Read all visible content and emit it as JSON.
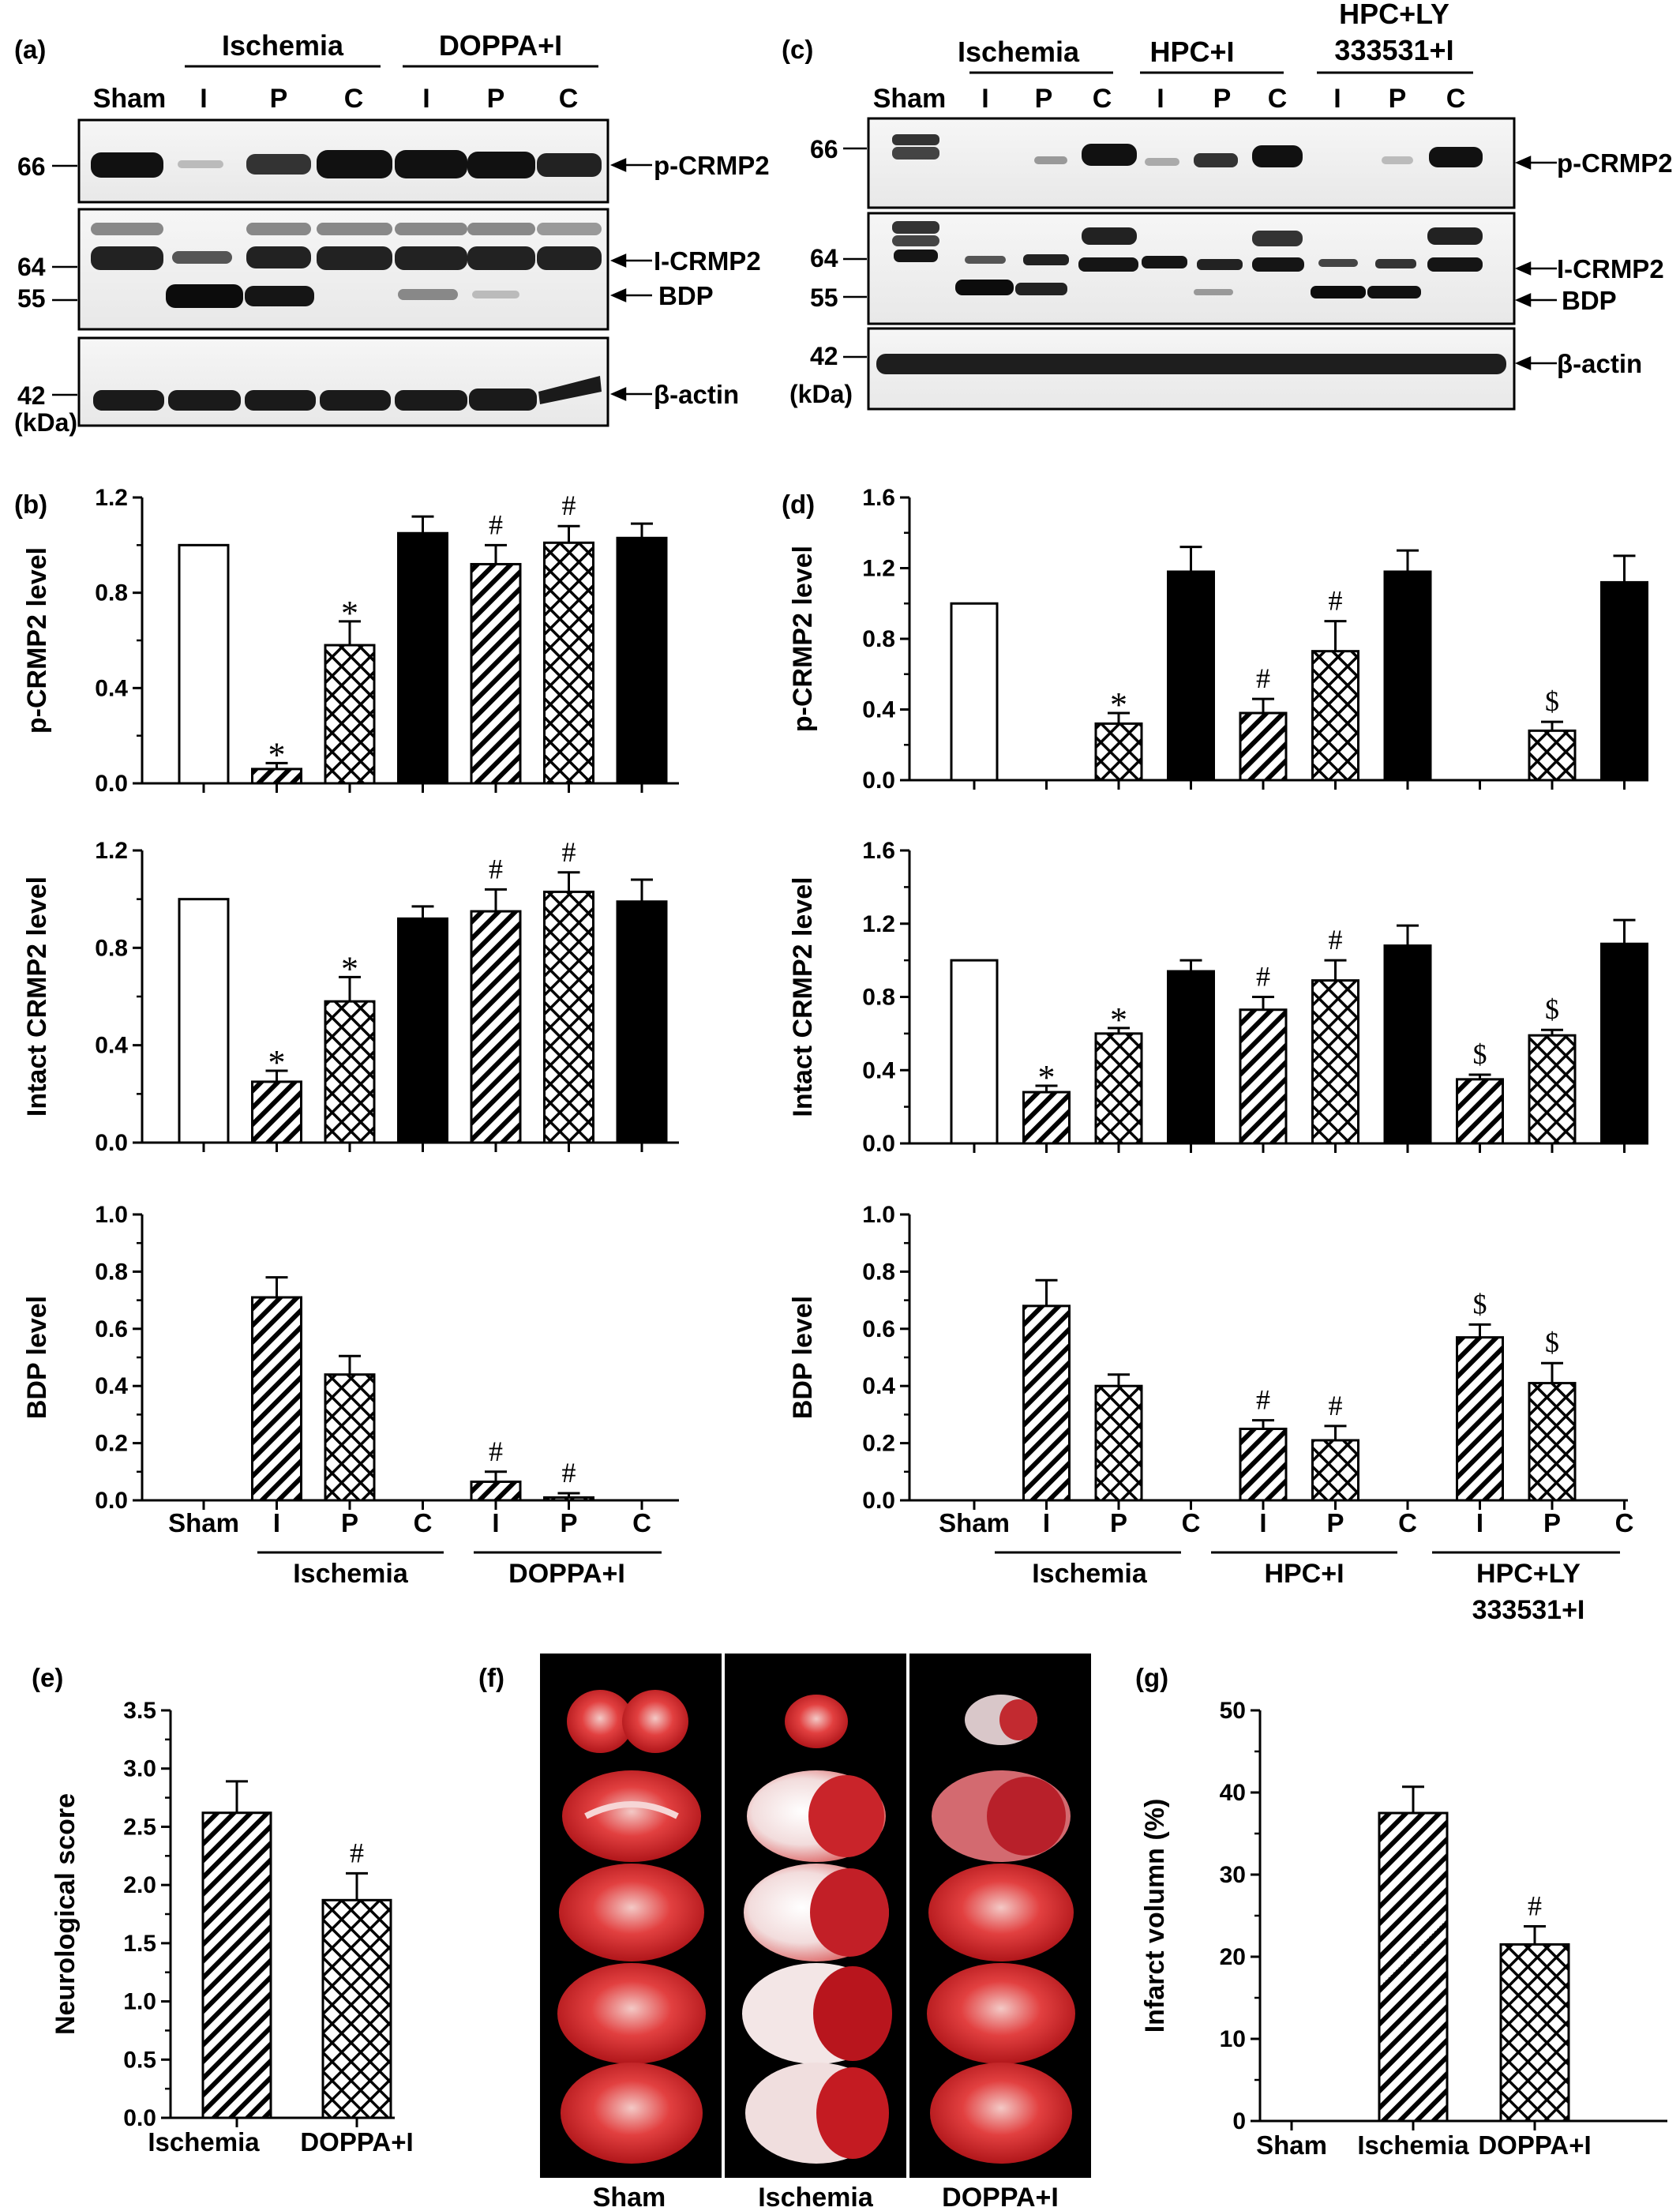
{
  "panel_letters": {
    "a": "(a)",
    "b": "(b)",
    "c": "(c)",
    "d": "(d)",
    "e": "(e)",
    "f": "(f)",
    "g": "(g)"
  },
  "lanes": {
    "sham": "Sham",
    "i": "I",
    "p": "P",
    "c": "C"
  },
  "groups": {
    "ischemia": "Ischemia",
    "doppa": "DOPPA+I",
    "hpc": "HPC+I",
    "hpcly_line1": "HPC+LY",
    "hpcly_line2": "333531+I"
  },
  "blots": {
    "a": {
      "mw": {
        "m66": "66",
        "m64": "64",
        "m55": "55",
        "m42": "42",
        "unit": "(kDa)"
      },
      "bands": {
        "p": "p-CRMP2",
        "i": "I-CRMP2",
        "bdp": "BDP",
        "actin": "β-actin"
      }
    },
    "c": {
      "mw": {
        "m66": "66",
        "m64": "64",
        "m55": "55",
        "m42": "42",
        "unit": "(kDa)"
      },
      "bands": {
        "p": "p-CRMP2",
        "i": "I-CRMP2",
        "bdp": "BDP",
        "actin": "β-actin"
      }
    }
  },
  "symbols": {
    "star": "*",
    "hash": "#",
    "dollar": "$"
  },
  "photo_labels": [
    "Sham",
    "Ischemia",
    "DOPPA+I"
  ],
  "chart_data": [
    {
      "panel": "b",
      "type": "bar",
      "ylabel": "p-CRMP2 level",
      "ylim": [
        0,
        1.2
      ],
      "yticks": [
        "0.0",
        "0.4",
        "0.8",
        "1.2"
      ],
      "categories": [
        "Sham",
        "I",
        "P",
        "C",
        "I",
        "P",
        "C"
      ],
      "groups": [
        "Ischemia",
        "DOPPA+I"
      ],
      "values": [
        1.0,
        0.06,
        0.58,
        1.05,
        0.92,
        1.01,
        1.03
      ],
      "errors": [
        0,
        0.025,
        0.1,
        0.07,
        0.08,
        0.07,
        0.06
      ],
      "patterns": [
        "open",
        "diag",
        "cross",
        "solid",
        "diag",
        "cross",
        "solid"
      ],
      "annotations": [
        "",
        "*",
        "*",
        "",
        "#",
        "#",
        ""
      ]
    },
    {
      "panel": "b",
      "type": "bar",
      "ylabel": "Intact CRMP2 level",
      "ylim": [
        0,
        1.2
      ],
      "yticks": [
        "0.0",
        "0.4",
        "0.8",
        "1.2"
      ],
      "categories": [
        "Sham",
        "I",
        "P",
        "C",
        "I",
        "P",
        "C"
      ],
      "groups": [
        "Ischemia",
        "DOPPA+I"
      ],
      "values": [
        1.0,
        0.25,
        0.58,
        0.92,
        0.95,
        1.03,
        0.99
      ],
      "errors": [
        0,
        0.045,
        0.1,
        0.05,
        0.09,
        0.08,
        0.09
      ],
      "patterns": [
        "open",
        "diag",
        "cross",
        "solid",
        "diag",
        "cross",
        "solid"
      ],
      "annotations": [
        "",
        "*",
        "*",
        "",
        "#",
        "#",
        ""
      ]
    },
    {
      "panel": "b",
      "type": "bar",
      "ylabel": "BDP level",
      "ylim": [
        0,
        1.0
      ],
      "yticks": [
        "0.0",
        "0.2",
        "0.4",
        "0.6",
        "0.8",
        "1.0"
      ],
      "categories": [
        "Sham",
        "I",
        "P",
        "C",
        "I",
        "P",
        "C"
      ],
      "groups": [
        "Ischemia",
        "DOPPA+I"
      ],
      "values": [
        0,
        0.71,
        0.44,
        0,
        0.065,
        0.01,
        0
      ],
      "errors": [
        0,
        0.07,
        0.065,
        0,
        0.035,
        0.015,
        0
      ],
      "patterns": [
        "open",
        "diag",
        "cross",
        "solid",
        "diag",
        "cross",
        "solid"
      ],
      "annotations": [
        "",
        "",
        "",
        "",
        "#",
        "#",
        ""
      ]
    },
    {
      "panel": "d",
      "type": "bar",
      "ylabel": "p-CRMP2 level",
      "ylim": [
        0,
        1.6
      ],
      "yticks": [
        "0.0",
        "0.4",
        "0.8",
        "1.2",
        "1.6"
      ],
      "categories": [
        "Sham",
        "I",
        "P",
        "C",
        "I",
        "P",
        "C",
        "I",
        "P",
        "C"
      ],
      "groups": [
        "Ischemia",
        "HPC+I",
        "HPC+LY 333531+I"
      ],
      "values": [
        1.0,
        0,
        0.32,
        1.18,
        0.38,
        0.73,
        1.18,
        0,
        0.28,
        1.12
      ],
      "errors": [
        0,
        0,
        0.06,
        0.14,
        0.08,
        0.17,
        0.12,
        0,
        0.05,
        0.15
      ],
      "patterns": [
        "open",
        "diag",
        "cross",
        "solid",
        "diag",
        "cross",
        "solid",
        "diag",
        "cross",
        "solid"
      ],
      "annotations": [
        "",
        "",
        "*",
        "",
        "#",
        "#",
        "",
        "",
        "$",
        ""
      ]
    },
    {
      "panel": "d",
      "type": "bar",
      "ylabel": "Intact CRMP2 level",
      "ylim": [
        0,
        1.6
      ],
      "yticks": [
        "0.0",
        "0.4",
        "0.8",
        "1.2",
        "1.6"
      ],
      "categories": [
        "Sham",
        "I",
        "P",
        "C",
        "I",
        "P",
        "C",
        "I",
        "P",
        "C"
      ],
      "groups": [
        "Ischemia",
        "HPC+I",
        "HPC+LY 333531+I"
      ],
      "values": [
        1.0,
        0.28,
        0.6,
        0.94,
        0.73,
        0.89,
        1.08,
        0.35,
        0.59,
        1.09
      ],
      "errors": [
        0,
        0.035,
        0.03,
        0.06,
        0.07,
        0.11,
        0.11,
        0.025,
        0.03,
        0.13
      ],
      "patterns": [
        "open",
        "diag",
        "cross",
        "solid",
        "diag",
        "cross",
        "solid",
        "diag",
        "cross",
        "solid"
      ],
      "annotations": [
        "",
        "*",
        "*",
        "",
        "#",
        "#",
        "",
        "$",
        "$",
        ""
      ]
    },
    {
      "panel": "d",
      "type": "bar",
      "ylabel": "BDP level",
      "ylim": [
        0,
        1.0
      ],
      "yticks": [
        "0.0",
        "0.2",
        "0.4",
        "0.6",
        "0.8",
        "1.0"
      ],
      "categories": [
        "Sham",
        "I",
        "P",
        "C",
        "I",
        "P",
        "C",
        "I",
        "P",
        "C"
      ],
      "groups": [
        "Ischemia",
        "HPC+I",
        "HPC+LY 333531+I"
      ],
      "values": [
        0,
        0.68,
        0.4,
        0,
        0.25,
        0.21,
        0,
        0.57,
        0.41,
        0
      ],
      "errors": [
        0,
        0.09,
        0.04,
        0,
        0.03,
        0.05,
        0,
        0.045,
        0.07,
        0
      ],
      "patterns": [
        "open",
        "diag",
        "cross",
        "solid",
        "diag",
        "cross",
        "solid",
        "diag",
        "cross",
        "solid"
      ],
      "annotations": [
        "",
        "",
        "",
        "",
        "#",
        "#",
        "",
        "$",
        "$",
        ""
      ]
    },
    {
      "panel": "e",
      "type": "bar",
      "ylabel": "Neurological score",
      "ylim": [
        0,
        3.5
      ],
      "yticks": [
        "0.0",
        "0.5",
        "1.0",
        "1.5",
        "2.0",
        "2.5",
        "3.0",
        "3.5"
      ],
      "categories": [
        "Ischemia",
        "DOPPA+I"
      ],
      "values": [
        2.62,
        1.87
      ],
      "errors": [
        0.27,
        0.23
      ],
      "patterns": [
        "diag",
        "cross"
      ],
      "annotations": [
        "",
        "#"
      ]
    },
    {
      "panel": "g",
      "type": "bar",
      "ylabel": "Infarct volumn (%)",
      "ylim": [
        0,
        50
      ],
      "yticks": [
        "0",
        "10",
        "20",
        "30",
        "40",
        "50"
      ],
      "categories": [
        "Sham",
        "Ischemia",
        "DOPPA+I"
      ],
      "values": [
        0,
        37.5,
        21.5
      ],
      "errors": [
        0,
        3.2,
        2.2
      ],
      "patterns": [
        "none",
        "diag",
        "cross"
      ],
      "annotations": [
        "",
        "",
        "#"
      ]
    }
  ]
}
